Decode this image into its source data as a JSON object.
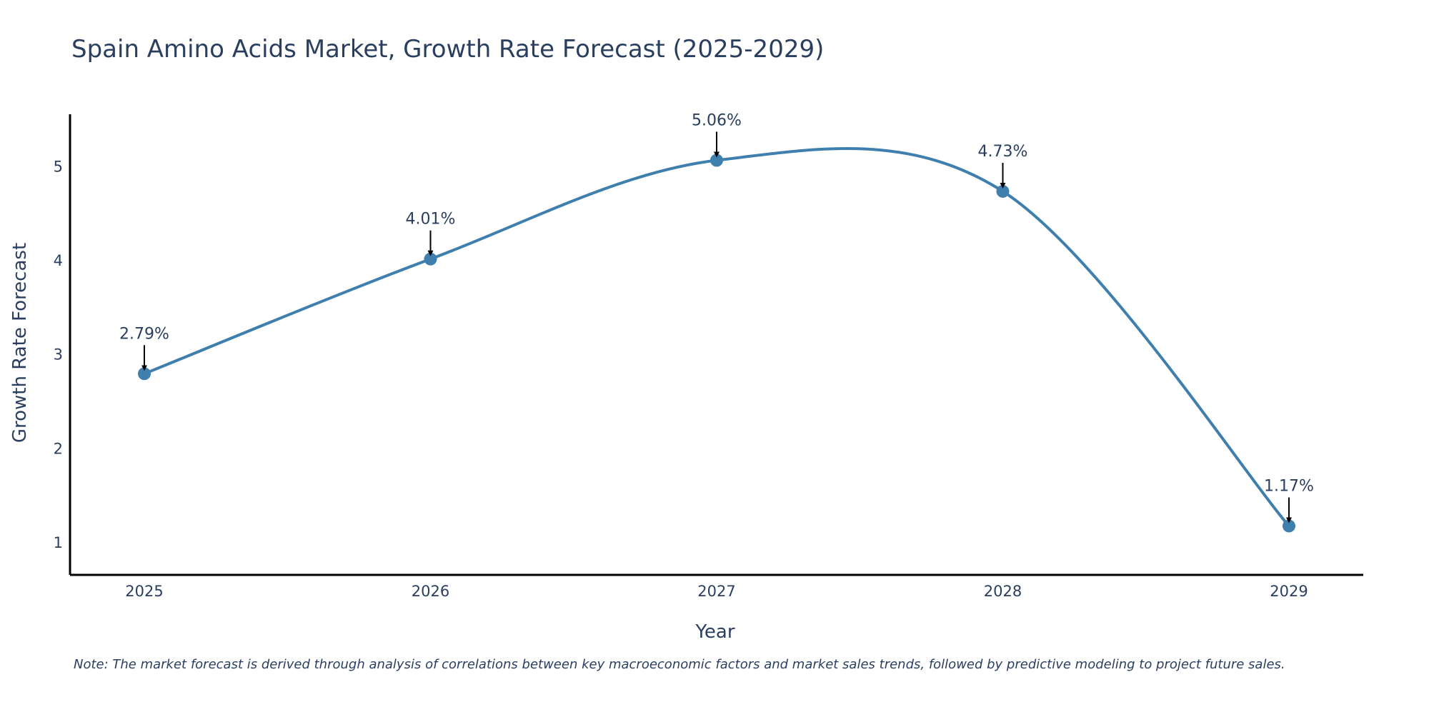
{
  "chart_data": {
    "type": "line",
    "title": "Spain Amino Acids Market, Growth Rate Forecast (2025-2029)",
    "xlabel": "Year",
    "ylabel": "Growth Rate Forecast",
    "categories": [
      "2025",
      "2026",
      "2027",
      "2028",
      "2029"
    ],
    "series": [
      {
        "name": "Growth Rate Forecast",
        "values": [
          2.79,
          4.01,
          5.06,
          4.73,
          1.17
        ],
        "labels": [
          "2.79%",
          "4.01%",
          "5.06%",
          "4.73%",
          "1.17%"
        ]
      }
    ],
    "ylim": [
      0.65,
      5.55
    ],
    "yticks": [
      1,
      2,
      3,
      4,
      5
    ],
    "ytick_labels": [
      "1",
      "2",
      "3",
      "4",
      "5"
    ],
    "grid": false,
    "line_style": "spline",
    "colors": {
      "line": "#3f7fae",
      "marker": "#3f7fae",
      "text": "#2a3f5f",
      "axis": "#000000",
      "arrow": "#000000"
    },
    "note": "Note: The market forecast is derived through analysis of correlations between key macroeconomic factors and market sales trends, followed by predictive modeling to project future sales."
  }
}
